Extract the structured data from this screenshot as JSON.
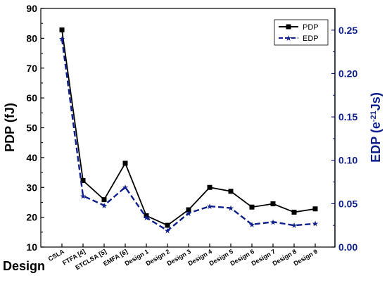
{
  "chart_data": {
    "type": "line",
    "xlabel": "Design",
    "ylabel_left": "PDP (fJ)",
    "ylabel_right_prefix": "EDP (e",
    "ylabel_right_sup": "-21",
    "ylabel_right_suffix": "Js)",
    "categories": [
      "CSLA",
      "FTFA [4]",
      "ETCLSA [5]",
      "EMFA [6]",
      "Design 1",
      "Design 2",
      "Design 3",
      "Design 4",
      "Design 5",
      "Design 6",
      "Design 7",
      "Design 8",
      "Design 9"
    ],
    "ylim_left": [
      10,
      90
    ],
    "yticks_left": [
      "10",
      "20",
      "30",
      "40",
      "50",
      "60",
      "70",
      "80",
      "90"
    ],
    "ylim_right": [
      0,
      0.275
    ],
    "yticks_right": [
      "0.00",
      "0.05",
      "0.10",
      "0.15",
      "0.20",
      "0.25"
    ],
    "series": [
      {
        "name": "PDP",
        "axis": "left",
        "color": "#000000",
        "marker": "square",
        "line": "solid",
        "values": [
          82.8,
          32.3,
          25.9,
          38.1,
          20.5,
          17.3,
          22.5,
          30.0,
          28.7,
          23.4,
          24.5,
          21.7,
          22.8
        ]
      },
      {
        "name": "EDP",
        "axis": "right",
        "color": "#0d1f8c",
        "marker": "star",
        "line": "dashed",
        "values": [
          0.24,
          0.059,
          0.048,
          0.069,
          0.034,
          0.019,
          0.039,
          0.047,
          0.045,
          0.026,
          0.029,
          0.025,
          0.027
        ]
      }
    ],
    "legend_position": "top-right"
  }
}
